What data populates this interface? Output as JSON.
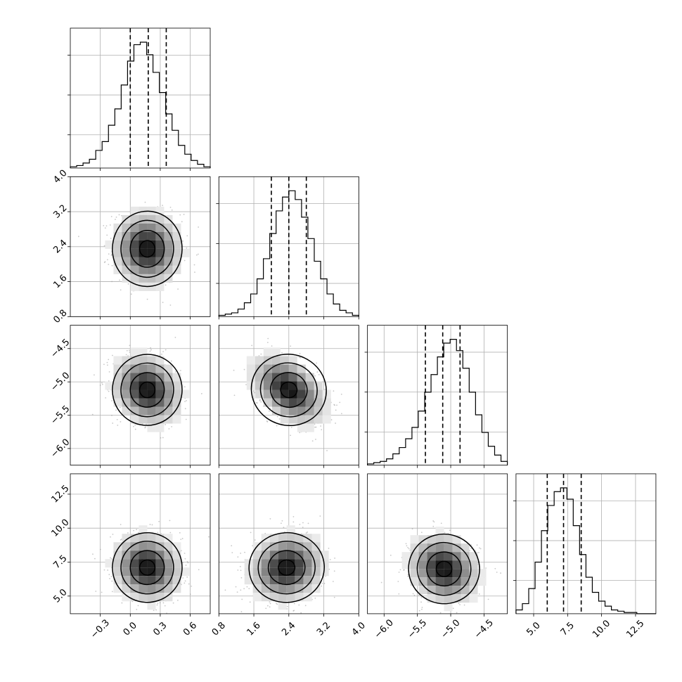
{
  "chart_data": {
    "type": "corner",
    "grid": true,
    "parameters": [
      {
        "range": [
          -0.6,
          0.8
        ],
        "ticks": [
          "−0.3",
          "0.0",
          "0.3",
          "0.6"
        ],
        "tick_values": [
          -0.3,
          0.0,
          0.3,
          0.6
        ],
        "quantiles": [
          0.0,
          0.18,
          0.36
        ]
      },
      {
        "range": [
          0.8,
          4.0
        ],
        "ticks": [
          "0.8",
          "1.6",
          "2.4",
          "3.2",
          "4.0"
        ],
        "tick_values": [
          0.8,
          1.6,
          2.4,
          3.2,
          4.0
        ],
        "quantiles": [
          2.0,
          2.4,
          2.8
        ]
      },
      {
        "range": [
          -6.25,
          -4.15
        ],
        "ticks": [
          "−6.0",
          "−5.5",
          "−5.0",
          "−4.5"
        ],
        "tick_values": [
          -6.0,
          -5.5,
          -5.0,
          -4.5
        ],
        "quantiles": [
          -5.38,
          -5.12,
          -4.86
        ]
      },
      {
        "range": [
          3.7,
          14.0
        ],
        "ticks": [
          "5.0",
          "7.5",
          "10.0",
          "12.5"
        ],
        "tick_values": [
          5.0,
          7.5,
          10.0,
          12.5
        ],
        "quantiles": [
          6.0,
          7.2,
          8.5
        ]
      }
    ],
    "histograms": [
      {
        "edges": [
          -0.6,
          0.8
        ],
        "counts": [
          0.01,
          0.02,
          0.04,
          0.07,
          0.14,
          0.21,
          0.34,
          0.47,
          0.66,
          0.85,
          0.98,
          1.0,
          0.9,
          0.76,
          0.6,
          0.43,
          0.3,
          0.18,
          0.11,
          0.06,
          0.03,
          0.01
        ]
      },
      {
        "edges": [
          0.8,
          4.0
        ],
        "counts": [
          0.01,
          0.02,
          0.03,
          0.06,
          0.11,
          0.18,
          0.3,
          0.46,
          0.66,
          0.84,
          0.95,
          1.0,
          0.93,
          0.79,
          0.62,
          0.44,
          0.3,
          0.18,
          0.1,
          0.05,
          0.03,
          0.01
        ]
      },
      {
        "edges": [
          -6.25,
          -4.15
        ],
        "counts": [
          0.01,
          0.02,
          0.03,
          0.05,
          0.09,
          0.14,
          0.21,
          0.3,
          0.43,
          0.58,
          0.72,
          0.86,
          0.97,
          1.0,
          0.91,
          0.77,
          0.58,
          0.4,
          0.26,
          0.15,
          0.08,
          0.03
        ]
      },
      {
        "edges": [
          3.7,
          14.0
        ],
        "counts": [
          0.03,
          0.08,
          0.2,
          0.41,
          0.66,
          0.86,
          0.97,
          1.0,
          0.91,
          0.7,
          0.47,
          0.29,
          0.17,
          0.1,
          0.06,
          0.03,
          0.02,
          0.01,
          0.01,
          0.0,
          0.0,
          0.0
        ]
      }
    ],
    "pairs": [
      {
        "x": 0,
        "y": 1,
        "mean": [
          0.17,
          2.35
        ],
        "sd": [
          0.17,
          0.42
        ],
        "rho": -0.05
      },
      {
        "x": 0,
        "y": 2,
        "mean": [
          0.17,
          -5.12
        ],
        "sd": [
          0.17,
          0.26
        ],
        "rho": -0.2
      },
      {
        "x": 1,
        "y": 2,
        "mean": [
          2.4,
          -5.12
        ],
        "sd": [
          0.42,
          0.26
        ],
        "rho": -0.45
      },
      {
        "x": 0,
        "y": 3,
        "mean": [
          0.17,
          7.1
        ],
        "sd": [
          0.17,
          1.25
        ],
        "rho": -0.1
      },
      {
        "x": 1,
        "y": 3,
        "mean": [
          2.35,
          7.1
        ],
        "sd": [
          0.42,
          1.25
        ],
        "rho": 0.12
      },
      {
        "x": 2,
        "y": 3,
        "mean": [
          -5.1,
          7.0
        ],
        "sd": [
          0.26,
          1.25
        ],
        "rho": -0.18
      }
    ],
    "colors": {
      "line": "#000000",
      "grid": "#b0b0b0",
      "points": "#9a9a9a"
    }
  }
}
